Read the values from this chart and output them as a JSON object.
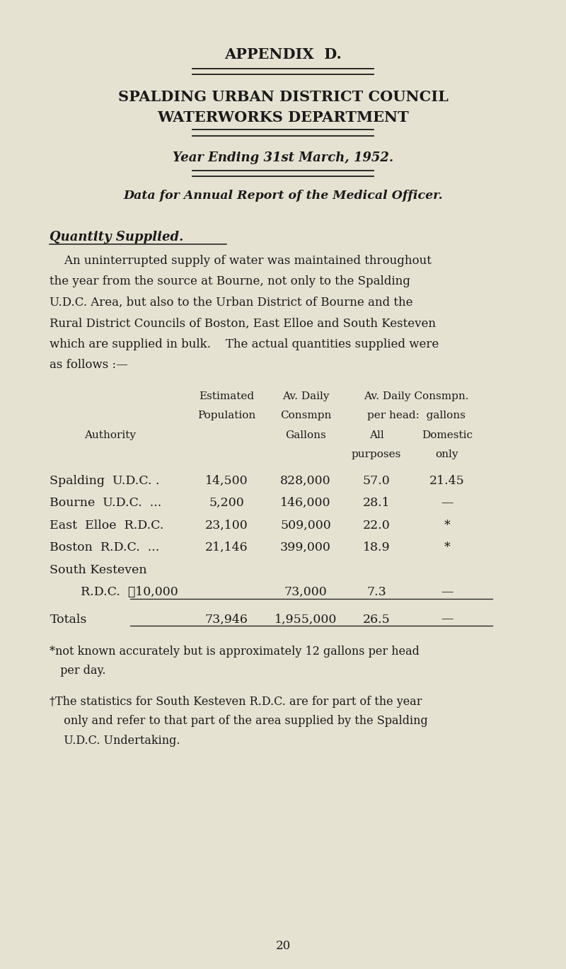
{
  "bg_color": "#e6e2d2",
  "text_color": "#1a1a1a",
  "appendix": "APPENDIX  D.",
  "title1": "SPALDING URBAN DISTRICT COUNCIL",
  "title2": "WATERWORKS DEPARTMENT",
  "year": "Year Ending 31st March, 1952.",
  "subtitle": "Data for Annual Report of the Medical Officer.",
  "section": "Quantity Supplied.",
  "page_number": "20",
  "para_lines": [
    "    An uninterrupted supply of water was maintained throughout",
    "the year from the source at Bourne, not only to the Spalding",
    "U.D.C. Area, but also to the Urban District of Bourne and the",
    "Rural District Councils of Boston, East Elloe and South Kesteven",
    "which are supplied in bulk.    The actual quantities supplied were",
    "as follows :—"
  ],
  "table_rows": [
    [
      "Spalding  U.D.C. .",
      "14,500",
      "828,000",
      "57.0",
      "21.45"
    ],
    [
      "Bourne  U.D.C.  ...",
      "5,200",
      "146,000",
      "28.1",
      "—"
    ],
    [
      "East  Elloe  R.D.C.",
      "23,100",
      "509,000",
      "22.0",
      "*"
    ],
    [
      "Boston  R.D.C.  ...",
      "21,146",
      "399,000",
      "18.9",
      "*"
    ],
    [
      "South Kesteven",
      "",
      "",
      "",
      ""
    ],
    [
      "        R.D.C.  ✐10,000",
      "",
      "73,000",
      "7.3",
      "—"
    ],
    [
      "Totals",
      "73,946",
      "1,955,000",
      "26.5",
      "—"
    ]
  ],
  "footnote1a": "*not known accurately but is approximately 12 gallons per head",
  "footnote1b": " per day.",
  "footnote2a": "†The statistics for South Kesteven R.D.C. are for part of the year",
  "footnote2b": "  only and refer to that part of the area supplied by the Spalding",
  "footnote2c": "  U.D.C. Undertaking.",
  "double_line_pairs": [
    [
      0.38,
      0.374
    ],
    [
      0.305,
      0.299
    ],
    [
      0.228,
      0.222
    ]
  ],
  "col_auth": 0.088,
  "col_pop": 0.4,
  "col_gal": 0.54,
  "col_all": 0.665,
  "col_dom": 0.79
}
